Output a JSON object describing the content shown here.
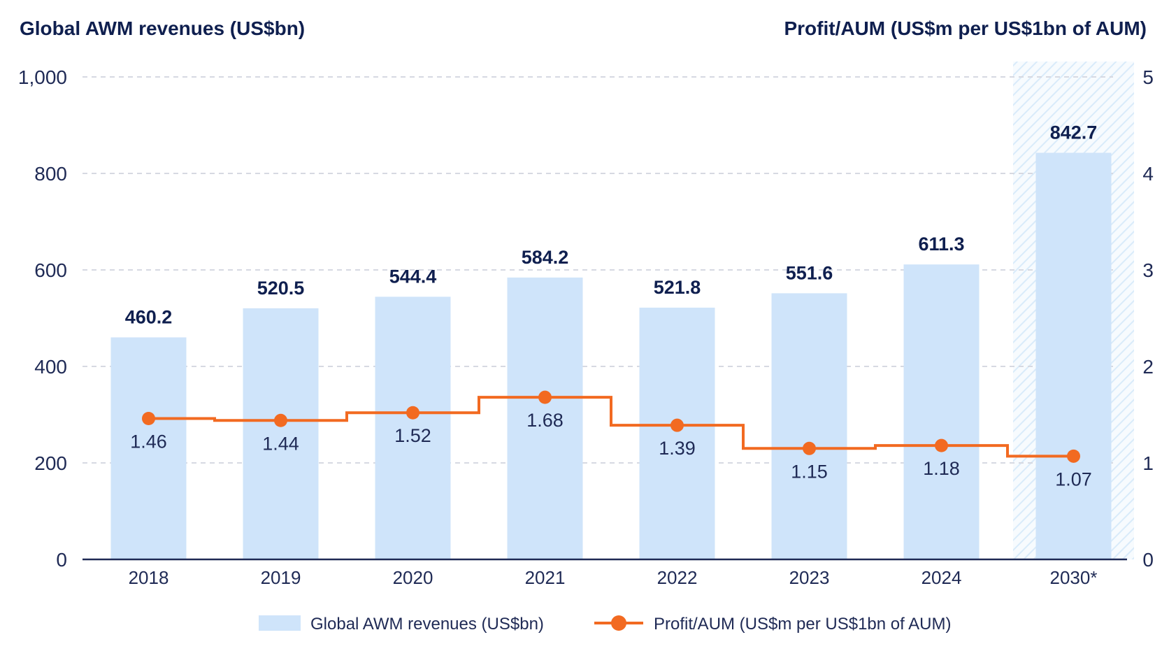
{
  "chart_data": {
    "type": "bar",
    "title": "",
    "y_left_title": "Global AWM revenues (US$bn)",
    "y_right_title": "Profit/AUM (US$m per US$1bn of AUM)",
    "categories": [
      "2018",
      "2019",
      "2020",
      "2021",
      "2022",
      "2023",
      "2024",
      "2030*"
    ],
    "ylim_left": [
      0,
      1000
    ],
    "yticks_left": [
      "0",
      "200",
      "400",
      "600",
      "800",
      "1,000"
    ],
    "ylim_right": [
      0,
      5
    ],
    "yticks_right": [
      "0",
      "1",
      "2",
      "3",
      "4",
      "5"
    ],
    "grid": true,
    "legend_position": "bottom",
    "series": [
      {
        "name": "Global AWM revenues (US$bn)",
        "type": "bar",
        "axis": "left",
        "color": "#cfe4fa",
        "values": [
          460.2,
          520.5,
          544.4,
          584.2,
          521.8,
          551.6,
          611.3,
          842.7
        ],
        "labels": [
          "460.2",
          "520.5",
          "544.4",
          "584.2",
          "521.8",
          "551.6",
          "611.3",
          "842.7"
        ]
      },
      {
        "name": "Profit/AUM (US$m per US$1bn of AUM)",
        "type": "step-line",
        "axis": "right",
        "color": "#f26a21",
        "values": [
          1.46,
          1.44,
          1.52,
          1.68,
          1.39,
          1.15,
          1.18,
          1.07
        ],
        "labels": [
          "1.46",
          "1.44",
          "1.52",
          "1.68",
          "1.39",
          "1.15",
          "1.18",
          "1.07"
        ]
      }
    ],
    "forecast_category": "2030*",
    "colors": {
      "axis": "#1f2a55",
      "grid": "#d6d9e2",
      "text": "#1f2a55",
      "bar": "#cfe4fa",
      "line": "#f26a21",
      "forecast_hatch": "#cfe4fa"
    }
  }
}
